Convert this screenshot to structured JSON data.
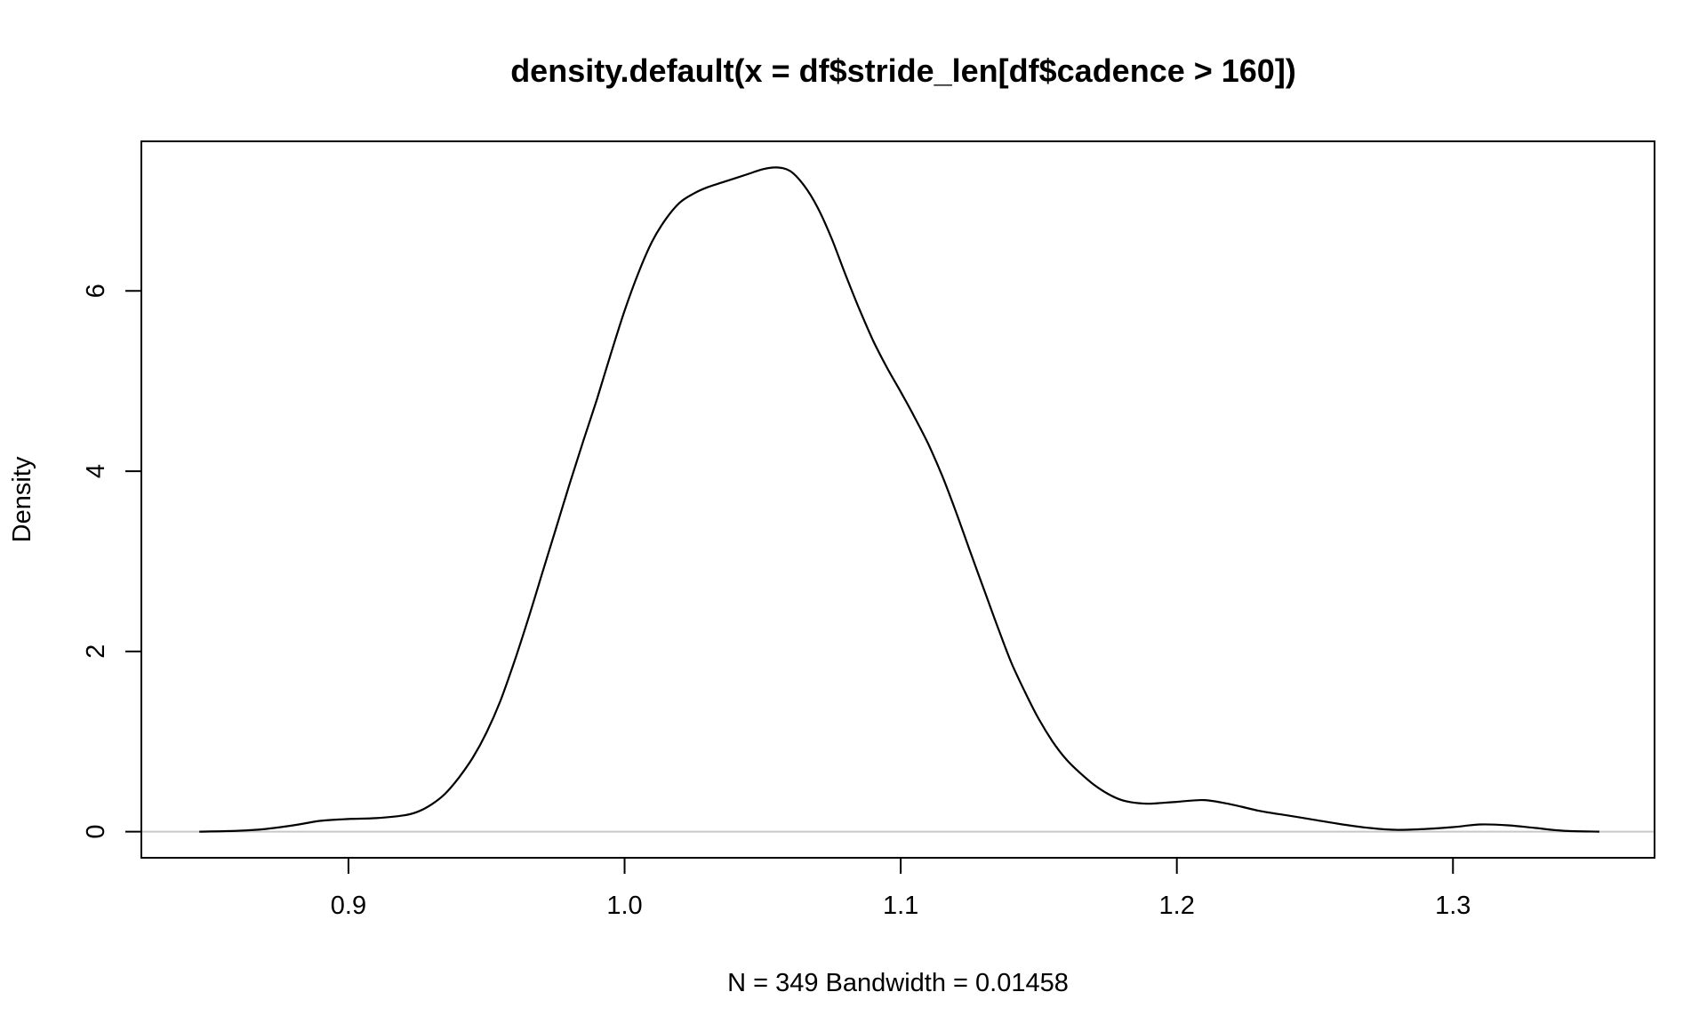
{
  "chart_data": {
    "type": "line",
    "title": "density.default(x = df$stride_len[df$cadence > 160])",
    "xlabel": "N = 349   Bandwidth = 0.01458",
    "ylabel": "Density",
    "xlim": [
      0.825,
      1.373
    ],
    "ylim": [
      -0.29,
      7.66
    ],
    "x_ticks": [
      "0.9",
      "1.0",
      "1.1",
      "1.2",
      "1.3"
    ],
    "y_ticks": [
      "0",
      "2",
      "4",
      "6"
    ],
    "baseline": 0,
    "grid": false,
    "legend": "none",
    "line_color": "#000000",
    "baseline_color": "#c8c8c8",
    "series": [
      {
        "x": [
          0.846,
          0.86,
          0.87,
          0.88,
          0.89,
          0.9,
          0.91,
          0.92,
          0.925,
          0.93,
          0.935,
          0.94,
          0.945,
          0.95,
          0.955,
          0.96,
          0.965,
          0.97,
          0.975,
          0.98,
          0.985,
          0.99,
          0.995,
          1.0,
          1.005,
          1.01,
          1.015,
          1.02,
          1.025,
          1.03,
          1.035,
          1.04,
          1.045,
          1.05,
          1.055,
          1.06,
          1.065,
          1.07,
          1.075,
          1.08,
          1.085,
          1.09,
          1.095,
          1.1,
          1.105,
          1.11,
          1.115,
          1.12,
          1.125,
          1.13,
          1.135,
          1.14,
          1.145,
          1.15,
          1.155,
          1.16,
          1.165,
          1.17,
          1.175,
          1.18,
          1.185,
          1.19,
          1.195,
          1.2,
          1.21,
          1.22,
          1.23,
          1.24,
          1.25,
          1.26,
          1.27,
          1.28,
          1.29,
          1.3,
          1.31,
          1.32,
          1.33,
          1.34,
          1.353
        ],
        "y": [
          0.0,
          0.01,
          0.03,
          0.07,
          0.12,
          0.14,
          0.15,
          0.18,
          0.22,
          0.3,
          0.42,
          0.6,
          0.82,
          1.1,
          1.45,
          1.88,
          2.35,
          2.85,
          3.35,
          3.85,
          4.33,
          4.8,
          5.3,
          5.78,
          6.2,
          6.55,
          6.8,
          6.98,
          7.08,
          7.15,
          7.2,
          7.25,
          7.3,
          7.35,
          7.37,
          7.33,
          7.17,
          6.92,
          6.58,
          6.18,
          5.8,
          5.45,
          5.15,
          4.88,
          4.6,
          4.3,
          3.95,
          3.55,
          3.12,
          2.7,
          2.28,
          1.88,
          1.55,
          1.25,
          1.0,
          0.8,
          0.65,
          0.52,
          0.42,
          0.35,
          0.32,
          0.31,
          0.32,
          0.33,
          0.35,
          0.3,
          0.23,
          0.18,
          0.13,
          0.08,
          0.04,
          0.02,
          0.03,
          0.05,
          0.08,
          0.07,
          0.04,
          0.01,
          0.0
        ]
      }
    ]
  }
}
